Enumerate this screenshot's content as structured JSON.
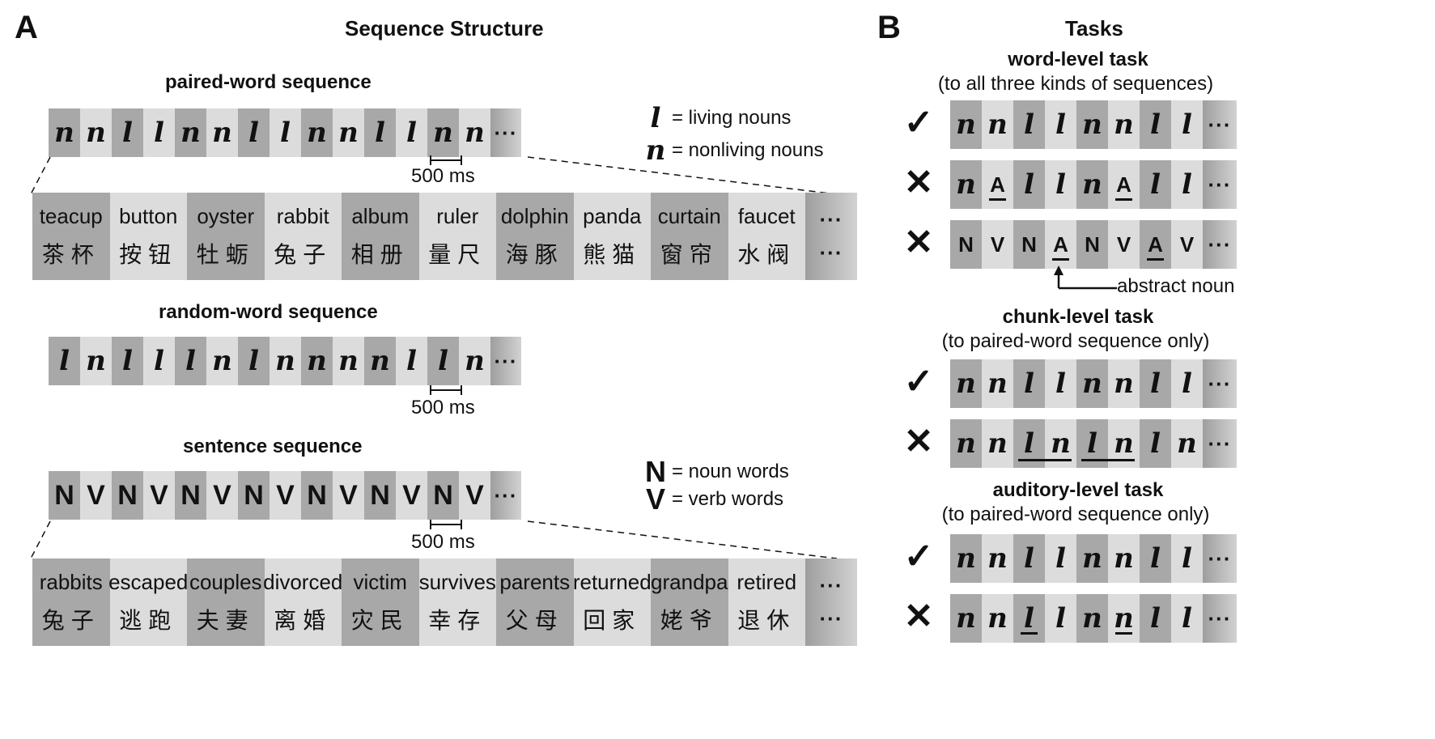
{
  "panel_a": {
    "letter": "A",
    "title": "Sequence Structure",
    "paired": {
      "title": "paired-word sequence",
      "symbols": [
        "n",
        "n",
        "l",
        "l",
        "n",
        "n",
        "l",
        "l",
        "n",
        "n",
        "l",
        "l",
        "n",
        "n"
      ],
      "scale": "500 ms",
      "words": [
        {
          "en": "teacup",
          "zh": "茶杯"
        },
        {
          "en": "button",
          "zh": "按钮"
        },
        {
          "en": "oyster",
          "zh": "牡蛎"
        },
        {
          "en": "rabbit",
          "zh": "兔子"
        },
        {
          "en": "album",
          "zh": "相册"
        },
        {
          "en": "ruler",
          "zh": "量尺"
        },
        {
          "en": "dolphin",
          "zh": "海豚"
        },
        {
          "en": "panda",
          "zh": "熊猫"
        },
        {
          "en": "curtain",
          "zh": "窗帘"
        },
        {
          "en": "faucet",
          "zh": "水阀"
        }
      ]
    },
    "legend1": [
      {
        "sym": "l",
        "text": "= living nouns"
      },
      {
        "sym": "n",
        "text": "= nonliving nouns"
      }
    ],
    "random": {
      "title": "random-word sequence",
      "symbols": [
        "l",
        "n",
        "l",
        "l",
        "l",
        "n",
        "l",
        "n",
        "n",
        "n",
        "n",
        "l",
        "l",
        "n"
      ],
      "scale": "500 ms"
    },
    "sentence": {
      "title": "sentence sequence",
      "symbols": [
        "N",
        "V",
        "N",
        "V",
        "N",
        "V",
        "N",
        "V",
        "N",
        "V",
        "N",
        "V",
        "N",
        "V"
      ],
      "scale": "500 ms",
      "words": [
        {
          "en": "rabbits",
          "zh": "兔子"
        },
        {
          "en": "escaped",
          "zh": "逃跑"
        },
        {
          "en": "couples",
          "zh": "夫妻"
        },
        {
          "en": "divorced",
          "zh": "离婚"
        },
        {
          "en": "victim",
          "zh": "灾民"
        },
        {
          "en": "survives",
          "zh": "幸存"
        },
        {
          "en": "parents",
          "zh": "父母"
        },
        {
          "en": "returned",
          "zh": "回家"
        },
        {
          "en": "grandpa",
          "zh": "姥爷"
        },
        {
          "en": "retired",
          "zh": "退休"
        }
      ]
    },
    "legend2": [
      {
        "sym": "N",
        "text": "= noun words"
      },
      {
        "sym": "V",
        "text": "= verb words"
      }
    ],
    "ellipsis": "···"
  },
  "panel_b": {
    "letter": "B",
    "title": "Tasks",
    "word_task": {
      "title": "word-level task",
      "subtitle": "(to all three kinds of sequences)",
      "row1": {
        "mark": "✓",
        "symbols": [
          "n",
          "n",
          "l",
          "l",
          "n",
          "n",
          "l",
          "l"
        ]
      },
      "row2": {
        "mark": "✕",
        "symbols": [
          "n",
          "A",
          "l",
          "l",
          "n",
          "A",
          "l",
          "l"
        ]
      },
      "row3": {
        "mark": "✕",
        "symbols": [
          "N",
          "V",
          "N",
          "A",
          "N",
          "V",
          "A",
          "V"
        ]
      },
      "annotation": "abstract noun"
    },
    "chunk_task": {
      "title": "chunk-level task",
      "subtitle": "(to paired-word sequence only)",
      "row1": {
        "mark": "✓",
        "symbols": [
          "n",
          "n",
          "l",
          "l",
          "n",
          "n",
          "l",
          "l"
        ]
      },
      "row2": {
        "mark": "✕",
        "symbols": [
          "n",
          "n",
          "l",
          "n",
          "l",
          "n",
          "l",
          "n"
        ]
      }
    },
    "auditory_task": {
      "title": "auditory-level task",
      "subtitle": "(to paired-word sequence only)",
      "row1": {
        "mark": "✓",
        "symbols": [
          "n",
          "n",
          "l",
          "l",
          "n",
          "n",
          "l",
          "l"
        ]
      },
      "row2": {
        "mark": "✕",
        "symbols": [
          "n",
          "n",
          "l",
          "l",
          "n",
          "n",
          "l",
          "l"
        ]
      }
    },
    "ellipsis": "···"
  }
}
